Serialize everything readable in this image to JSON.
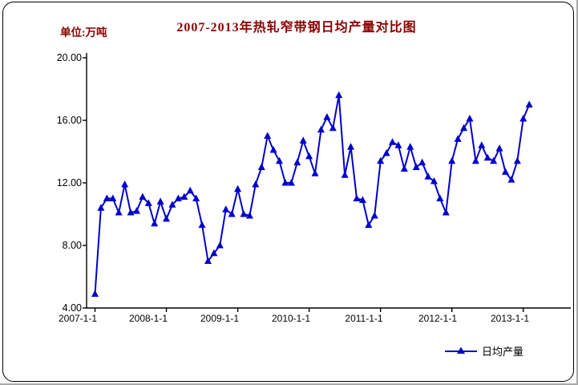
{
  "colors": {
    "title_text": "#8B0000",
    "series_line": "#0000CC",
    "axis": "#000000",
    "background": "#FFFFFF"
  },
  "chart_data": {
    "type": "line",
    "title": "2007-2013年热轧窄带钢日均产量对比图",
    "unit_label": "单位:万吨",
    "xlabel": "",
    "ylabel": "",
    "ylim": [
      4,
      20
    ],
    "y_tick_step": 4,
    "grid": false,
    "legend_position": "bottom-right",
    "y_tick_labels": [
      "4.00",
      "8.00",
      "12.00",
      "16.00",
      "20.00"
    ],
    "x_tick_labels": [
      "2007-1-1",
      "2008-1-1",
      "2009-1-1",
      "2010-1-1",
      "2011-1-1",
      "2012-1-1",
      "2013-1-1"
    ],
    "x_months": [
      "2007-01",
      "2007-02",
      "2007-03",
      "2007-04",
      "2007-05",
      "2007-06",
      "2007-07",
      "2007-08",
      "2007-09",
      "2007-10",
      "2007-11",
      "2007-12",
      "2008-01",
      "2008-02",
      "2008-03",
      "2008-04",
      "2008-05",
      "2008-06",
      "2008-07",
      "2008-08",
      "2008-09",
      "2008-10",
      "2008-11",
      "2008-12",
      "2009-01",
      "2009-02",
      "2009-03",
      "2009-04",
      "2009-05",
      "2009-06",
      "2009-07",
      "2009-08",
      "2009-09",
      "2009-10",
      "2009-11",
      "2009-12",
      "2010-01",
      "2010-02",
      "2010-03",
      "2010-04",
      "2010-05",
      "2010-06",
      "2010-07",
      "2010-08",
      "2010-09",
      "2010-10",
      "2010-11",
      "2010-12",
      "2011-01",
      "2011-02",
      "2011-03",
      "2011-04",
      "2011-05",
      "2011-06",
      "2011-07",
      "2011-08",
      "2011-09",
      "2011-10",
      "2011-11",
      "2011-12",
      "2012-01",
      "2012-02",
      "2012-03",
      "2012-04",
      "2012-05",
      "2012-06",
      "2012-07",
      "2012-08",
      "2012-09",
      "2012-10",
      "2012-11",
      "2012-12",
      "2013-01",
      "2013-02"
    ],
    "series": [
      {
        "name": "日均产量",
        "color": "#0000CC",
        "marker": "triangle-up",
        "values": [
          4.9,
          10.4,
          11.0,
          11.0,
          10.1,
          11.9,
          10.1,
          10.2,
          11.1,
          10.7,
          9.4,
          10.8,
          9.7,
          10.6,
          11.0,
          11.1,
          11.5,
          11.0,
          9.3,
          7.0,
          7.5,
          8.0,
          10.3,
          10.0,
          11.6,
          10.0,
          9.9,
          11.9,
          13.0,
          15.0,
          14.1,
          13.4,
          12.0,
          12.0,
          13.3,
          14.7,
          13.7,
          12.6,
          15.4,
          16.2,
          15.5,
          17.6,
          12.5,
          14.3,
          11.0,
          10.9,
          9.3,
          9.9,
          13.4,
          13.9,
          14.6,
          14.4,
          12.9,
          14.3,
          13.0,
          13.3,
          12.4,
          12.1,
          11.0,
          10.1,
          13.4,
          14.8,
          15.5,
          16.1,
          13.4,
          14.4,
          13.6,
          13.4,
          14.2,
          12.7,
          12.2,
          13.4,
          16.1,
          17.0
        ]
      }
    ]
  }
}
